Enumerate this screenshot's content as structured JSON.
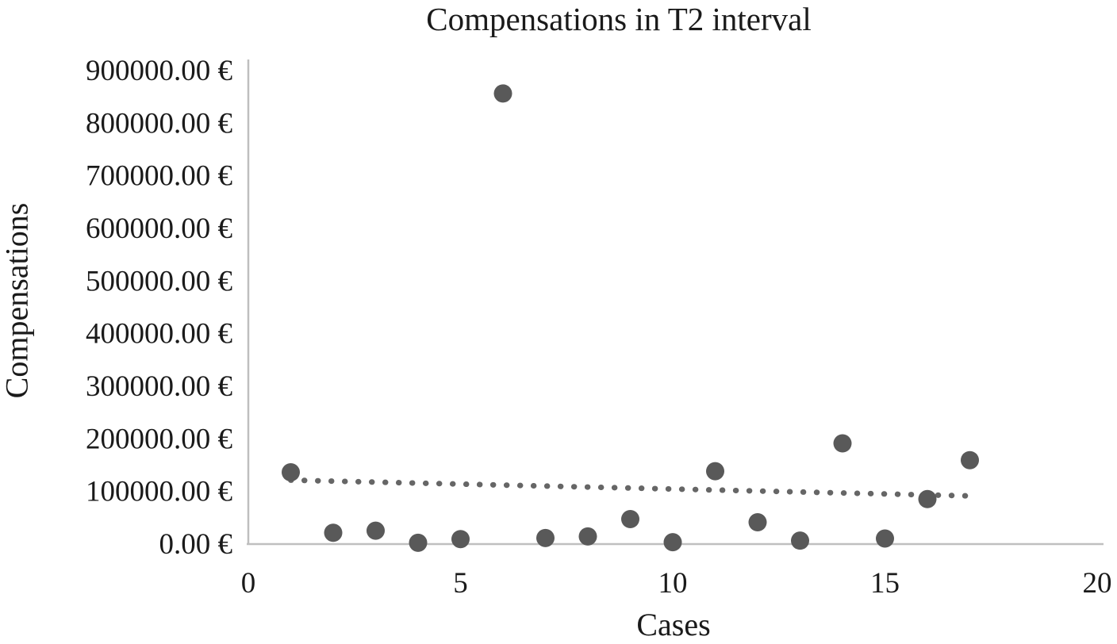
{
  "chart_data": {
    "type": "scatter",
    "title": "Compensations in T2 interval",
    "xlabel": "Cases",
    "ylabel": "Compensations",
    "xlim": [
      0,
      20
    ],
    "ylim": [
      0,
      900000
    ],
    "grid": false,
    "legend": false,
    "x_ticks": [
      0,
      5,
      10,
      15,
      20
    ],
    "x_tick_labels": [
      "0",
      "5",
      "10",
      "15",
      "20"
    ],
    "y_ticks": [
      0,
      100000,
      200000,
      300000,
      400000,
      500000,
      600000,
      700000,
      800000,
      900000
    ],
    "y_tick_labels": [
      "0.00 €",
      "100000.00 €",
      "200000.00 €",
      "300000.00 €",
      "400000.00 €",
      "500000.00 €",
      "600000.00 €",
      "700000.00 €",
      "800000.00 €",
      "900000.00 €"
    ],
    "series": [
      {
        "name": "Compensations",
        "points": [
          {
            "x": 1,
            "y": 135000
          },
          {
            "x": 2,
            "y": 20000
          },
          {
            "x": 3,
            "y": 24000
          },
          {
            "x": 4,
            "y": 1000
          },
          {
            "x": 5,
            "y": 8000
          },
          {
            "x": 6,
            "y": 855000
          },
          {
            "x": 7,
            "y": 10000
          },
          {
            "x": 8,
            "y": 13000
          },
          {
            "x": 9,
            "y": 46000
          },
          {
            "x": 10,
            "y": 2000
          },
          {
            "x": 11,
            "y": 137000
          },
          {
            "x": 12,
            "y": 40000
          },
          {
            "x": 13,
            "y": 5000
          },
          {
            "x": 14,
            "y": 190000
          },
          {
            "x": 15,
            "y": 9000
          },
          {
            "x": 16,
            "y": 84000
          },
          {
            "x": 17,
            "y": 158000
          }
        ]
      }
    ],
    "trendline": {
      "style": "dotted",
      "x1": 1,
      "y1": 120000,
      "x2": 17,
      "y2": 90000
    },
    "colors": {
      "marker": "#595959",
      "trendline": "#666666",
      "axis_line": "#bfbfbf",
      "text": "#1a1a1a"
    }
  }
}
